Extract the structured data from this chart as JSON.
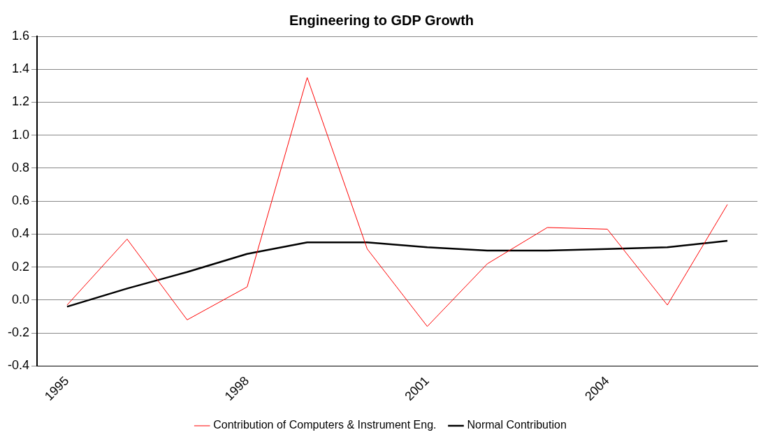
{
  "chart_data": {
    "type": "line",
    "title": "Engineering to GDP Growth",
    "categories": [
      "1995",
      null,
      null,
      "1998",
      null,
      null,
      "2001",
      null,
      null,
      "2004",
      null,
      null
    ],
    "series": [
      {
        "name": "Contribution of Computers & Instrument Eng.",
        "color": "#ff0000",
        "values": [
          -0.03,
          0.37,
          -0.12,
          0.08,
          1.35,
          0.31,
          -0.16,
          0.22,
          0.44,
          0.43,
          -0.03,
          0.58
        ]
      },
      {
        "name": "Normal Contribution",
        "color": "#000000",
        "values": [
          -0.04,
          0.07,
          0.17,
          0.28,
          0.35,
          0.35,
          0.32,
          0.3,
          0.3,
          0.31,
          0.32,
          0.36
        ]
      }
    ],
    "ylim": [
      -0.4,
      1.6
    ],
    "yticks": [
      {
        "value": -0.4,
        "label": "-0.4"
      },
      {
        "value": -0.2,
        "label": "-0.2"
      },
      {
        "value": 0,
        "label": "0.0"
      },
      {
        "value": 0.2,
        "label": "0.2"
      },
      {
        "value": 0.4,
        "label": "0.4"
      },
      {
        "value": 0.6,
        "label": "0.6"
      },
      {
        "value": 0.8,
        "label": "0.8"
      },
      {
        "value": 1,
        "label": "1.0"
      },
      {
        "value": 1.2,
        "label": "1.2"
      },
      {
        "value": 1.4,
        "label": "1.4"
      },
      {
        "value": 1.6,
        "label": "1.6"
      }
    ],
    "grid": "y",
    "legend": "bottom",
    "marker": "none",
    "line_style": "solid"
  }
}
